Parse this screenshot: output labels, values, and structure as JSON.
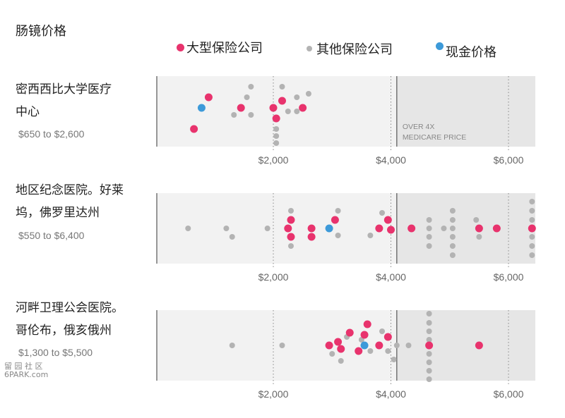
{
  "title": "肠镜价格",
  "legend": [
    {
      "label": "大型保险公司",
      "color": "#e8336d"
    },
    {
      "label": "其他保险公司",
      "color": "#b3b3b3"
    },
    {
      "label": "现金价格",
      "color": "#3d9ad9"
    }
  ],
  "hospitals": [
    {
      "name_line1": "密西西比大学医疗",
      "name_line2": "中心",
      "range": "$650 to $2,600"
    },
    {
      "name_line1": "地区纪念医院。好莱",
      "name_line2": "坞，佛罗里达州",
      "range": "$550 to $6,400"
    },
    {
      "name_line1": "河畔卫理公会医院。",
      "name_line2": "哥伦布，俄亥俄州",
      "range": "$1,300 to $5,500"
    }
  ],
  "annotation": {
    "line1": "OVER 4X",
    "line2": "MEDICARE PRICE"
  },
  "watermark": {
    "line1": "留 园 社 区",
    "line2": "6PARK.com"
  },
  "chart_data": {
    "type": "scatter",
    "x_ticks": [
      2000,
      4000,
      6000
    ],
    "x_tick_labels": [
      "$2,000",
      "$4,000",
      "$6,000"
    ],
    "xlim": [
      0,
      6500
    ],
    "panels": [
      {
        "hospital": "密西西比大学医疗中心",
        "medicare_4x": 4100,
        "points": [
          {
            "x": 650,
            "y": 0.25,
            "c": "major"
          },
          {
            "x": 780,
            "y": 0.55,
            "c": "cash"
          },
          {
            "x": 900,
            "y": 0.7,
            "c": "major"
          },
          {
            "x": 1450,
            "y": 0.55,
            "c": "major"
          },
          {
            "x": 1620,
            "y": 0.45,
            "c": "other"
          },
          {
            "x": 1620,
            "y": 0.85,
            "c": "other"
          },
          {
            "x": 1550,
            "y": 0.7,
            "c": "other"
          },
          {
            "x": 1330,
            "y": 0.45,
            "c": "other"
          },
          {
            "x": 2000,
            "y": 0.55,
            "c": "major"
          },
          {
            "x": 2150,
            "y": 0.65,
            "c": "major"
          },
          {
            "x": 2050,
            "y": 0.4,
            "c": "major"
          },
          {
            "x": 2050,
            "y": 0.25,
            "c": "other"
          },
          {
            "x": 2050,
            "y": 0.15,
            "c": "other"
          },
          {
            "x": 2150,
            "y": 0.85,
            "c": "other"
          },
          {
            "x": 2250,
            "y": 0.5,
            "c": "other"
          },
          {
            "x": 2400,
            "y": 0.7,
            "c": "other"
          },
          {
            "x": 2400,
            "y": 0.5,
            "c": "other"
          },
          {
            "x": 2500,
            "y": 0.55,
            "c": "major"
          },
          {
            "x": 2600,
            "y": 0.75,
            "c": "other"
          },
          {
            "x": 2050,
            "y": 0.05,
            "c": "other"
          }
        ]
      },
      {
        "hospital": "地区纪念医院。好莱坞，佛罗里达州",
        "medicare_4x": 4100,
        "points": [
          {
            "x": 550,
            "y": 0.5,
            "c": "other"
          },
          {
            "x": 1200,
            "y": 0.5,
            "c": "other"
          },
          {
            "x": 1300,
            "y": 0.38,
            "c": "other"
          },
          {
            "x": 1900,
            "y": 0.5,
            "c": "other"
          },
          {
            "x": 2250,
            "y": 0.5,
            "c": "major"
          },
          {
            "x": 2300,
            "y": 0.62,
            "c": "major"
          },
          {
            "x": 2300,
            "y": 0.38,
            "c": "major"
          },
          {
            "x": 2300,
            "y": 0.75,
            "c": "other"
          },
          {
            "x": 2300,
            "y": 0.25,
            "c": "other"
          },
          {
            "x": 2650,
            "y": 0.5,
            "c": "major"
          },
          {
            "x": 2650,
            "y": 0.38,
            "c": "major"
          },
          {
            "x": 2950,
            "y": 0.5,
            "c": "cash"
          },
          {
            "x": 3050,
            "y": 0.62,
            "c": "major"
          },
          {
            "x": 3100,
            "y": 0.75,
            "c": "other"
          },
          {
            "x": 3100,
            "y": 0.4,
            "c": "other"
          },
          {
            "x": 3650,
            "y": 0.4,
            "c": "other"
          },
          {
            "x": 3800,
            "y": 0.5,
            "c": "major"
          },
          {
            "x": 3950,
            "y": 0.62,
            "c": "major"
          },
          {
            "x": 3850,
            "y": 0.72,
            "c": "other"
          },
          {
            "x": 4000,
            "y": 0.48,
            "c": "major"
          },
          {
            "x": 4350,
            "y": 0.5,
            "c": "major"
          },
          {
            "x": 4650,
            "y": 0.62,
            "c": "other"
          },
          {
            "x": 4650,
            "y": 0.38,
            "c": "other"
          },
          {
            "x": 4650,
            "y": 0.5,
            "c": "other"
          },
          {
            "x": 4650,
            "y": 0.25,
            "c": "other"
          },
          {
            "x": 4900,
            "y": 0.5,
            "c": "other"
          },
          {
            "x": 5050,
            "y": 0.75,
            "c": "other"
          },
          {
            "x": 5050,
            "y": 0.62,
            "c": "other"
          },
          {
            "x": 5050,
            "y": 0.5,
            "c": "other"
          },
          {
            "x": 5050,
            "y": 0.38,
            "c": "other"
          },
          {
            "x": 5050,
            "y": 0.25,
            "c": "other"
          },
          {
            "x": 5050,
            "y": 0.12,
            "c": "other"
          },
          {
            "x": 5450,
            "y": 0.62,
            "c": "other"
          },
          {
            "x": 5500,
            "y": 0.5,
            "c": "major"
          },
          {
            "x": 5500,
            "y": 0.38,
            "c": "other"
          },
          {
            "x": 5800,
            "y": 0.5,
            "c": "major"
          },
          {
            "x": 6400,
            "y": 0.88,
            "c": "other"
          },
          {
            "x": 6400,
            "y": 0.75,
            "c": "other"
          },
          {
            "x": 6400,
            "y": 0.62,
            "c": "other"
          },
          {
            "x": 6400,
            "y": 0.5,
            "c": "major"
          },
          {
            "x": 6400,
            "y": 0.38,
            "c": "other"
          },
          {
            "x": 6400,
            "y": 0.25,
            "c": "other"
          },
          {
            "x": 6400,
            "y": 0.12,
            "c": "other"
          }
        ]
      },
      {
        "hospital": "河畔卫理公会医院。哥伦布，俄亥俄州",
        "medicare_4x": 4100,
        "points": [
          {
            "x": 1300,
            "y": 0.5,
            "c": "other"
          },
          {
            "x": 2150,
            "y": 0.5,
            "c": "other"
          },
          {
            "x": 2950,
            "y": 0.5,
            "c": "major"
          },
          {
            "x": 3000,
            "y": 0.38,
            "c": "other"
          },
          {
            "x": 3100,
            "y": 0.55,
            "c": "major"
          },
          {
            "x": 3150,
            "y": 0.45,
            "c": "major"
          },
          {
            "x": 3150,
            "y": 0.28,
            "c": "other"
          },
          {
            "x": 3250,
            "y": 0.62,
            "c": "other"
          },
          {
            "x": 3300,
            "y": 0.68,
            "c": "major"
          },
          {
            "x": 3450,
            "y": 0.42,
            "c": "major"
          },
          {
            "x": 3500,
            "y": 0.58,
            "c": "other"
          },
          {
            "x": 3550,
            "y": 0.5,
            "c": "cash"
          },
          {
            "x": 3550,
            "y": 0.65,
            "c": "major"
          },
          {
            "x": 3600,
            "y": 0.8,
            "c": "major"
          },
          {
            "x": 3650,
            "y": 0.42,
            "c": "other"
          },
          {
            "x": 3800,
            "y": 0.5,
            "c": "major"
          },
          {
            "x": 3850,
            "y": 0.7,
            "c": "other"
          },
          {
            "x": 3950,
            "y": 0.62,
            "c": "major"
          },
          {
            "x": 3950,
            "y": 0.42,
            "c": "other"
          },
          {
            "x": 4050,
            "y": 0.3,
            "c": "other"
          },
          {
            "x": 4100,
            "y": 0.5,
            "c": "other"
          },
          {
            "x": 4300,
            "y": 0.5,
            "c": "other"
          },
          {
            "x": 4650,
            "y": 0.95,
            "c": "other"
          },
          {
            "x": 4650,
            "y": 0.82,
            "c": "other"
          },
          {
            "x": 4650,
            "y": 0.7,
            "c": "other"
          },
          {
            "x": 4650,
            "y": 0.58,
            "c": "other"
          },
          {
            "x": 4650,
            "y": 0.5,
            "c": "major"
          },
          {
            "x": 4650,
            "y": 0.38,
            "c": "other"
          },
          {
            "x": 4650,
            "y": 0.26,
            "c": "other"
          },
          {
            "x": 4650,
            "y": 0.14,
            "c": "other"
          },
          {
            "x": 4650,
            "y": 0.02,
            "c": "other"
          },
          {
            "x": 5500,
            "y": 0.5,
            "c": "major"
          }
        ]
      }
    ]
  }
}
